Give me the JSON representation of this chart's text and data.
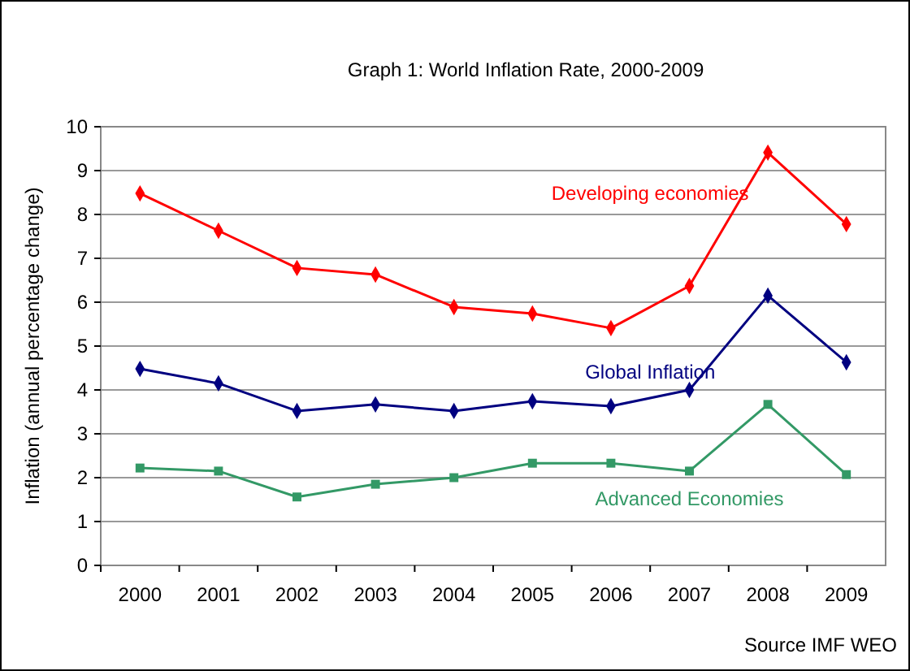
{
  "chart_data": {
    "type": "line",
    "title": "Graph 1: World Inflation Rate, 2000-2009",
    "ylabel": "Inflation (annual percentage change)",
    "categories": [
      "2000",
      "2001",
      "2002",
      "2003",
      "2004",
      "2005",
      "2006",
      "2007",
      "2008",
      "2009"
    ],
    "series": [
      {
        "name": "Developing economies",
        "color": "#ff0000",
        "marker": "diamond",
        "values": [
          8.48,
          7.63,
          6.78,
          6.63,
          5.89,
          5.74,
          5.41,
          6.37,
          9.41,
          7.78
        ]
      },
      {
        "name": "Global Inflation",
        "color": "#000080",
        "marker": "diamond",
        "values": [
          4.48,
          4.15,
          3.52,
          3.67,
          3.52,
          3.74,
          3.63,
          4.0,
          6.15,
          4.63
        ]
      },
      {
        "name": "Advanced Economies",
        "color": "#339966",
        "marker": "square",
        "values": [
          2.22,
          2.15,
          1.56,
          1.85,
          2.0,
          2.33,
          2.33,
          2.15,
          3.67,
          2.07
        ]
      }
    ],
    "ylim": [
      0,
      10
    ],
    "yticks": [
      0,
      1,
      2,
      3,
      4,
      5,
      6,
      7,
      8,
      9,
      10
    ],
    "grid": "y",
    "legend": false,
    "annotations": [
      "Source IMF WEO"
    ]
  }
}
